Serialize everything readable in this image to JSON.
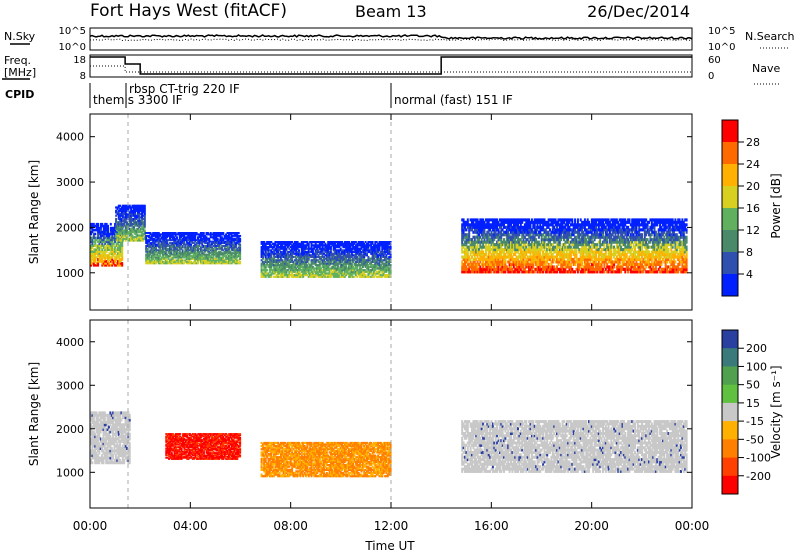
{
  "header": {
    "station": "Fort Hays West (fitACF)",
    "beam": "Beam 13",
    "date": "26/Dec/2014"
  },
  "status_panels": {
    "nsky_label": "N.Sky",
    "nsearch_label": "N.Search",
    "freq_label_line1": "Freq.",
    "freq_label_line2": "[MHz]",
    "nave_label": "Nave",
    "cpid_label": "CPID",
    "noise_ticks_left": [
      "10^5",
      "10^0"
    ],
    "noise_ticks_right": [
      "10^5",
      "10^0"
    ],
    "freq_ticks": [
      "18",
      "8"
    ],
    "nave_ticks": [
      "60",
      "0"
    ],
    "cpid_segments": [
      {
        "label": "themis 3300 IF",
        "start_hour": 0.0
      },
      {
        "label": "rbsp CT-trig 220 IF",
        "start_hour": 1.4
      },
      {
        "label": "normal (fast) 151 IF",
        "start_hour": 12.0
      }
    ]
  },
  "colorbars": {
    "power": {
      "label": "Power [dB]",
      "ticks": [
        "28",
        "24",
        "20",
        "16",
        "12",
        "8",
        "4"
      ],
      "colors": [
        "#ff0000",
        "#ff6a00",
        "#ffb000",
        "#d8d020",
        "#60b060",
        "#4a8a6a",
        "#3050b0",
        "#0020ff"
      ]
    },
    "velocity": {
      "label": "Velocity [m s⁻¹]",
      "ticks": [
        "200",
        "100",
        "50",
        "15",
        "-15",
        "-50",
        "-100",
        "-200"
      ],
      "colors": [
        "#2a40a0",
        "#3a7a7a",
        "#50a050",
        "#60c040",
        "#c8c8c8",
        "#ffb000",
        "#ff8000",
        "#ff4000",
        "#ff0000"
      ]
    }
  },
  "chart_data": [
    {
      "type": "heatmap",
      "title": "",
      "parameter": "Power",
      "ylabel": "Slant Range [km]",
      "xlabel": "",
      "yticks": [
        "1000",
        "2000",
        "3000",
        "4000"
      ],
      "xlim": [
        0,
        24
      ],
      "ylim": [
        180,
        4500
      ],
      "bands": [
        {
          "t0": 0.0,
          "t1": 1.3,
          "r0": 1150,
          "r1": 2100,
          "level": "mid"
        },
        {
          "t0": 1.0,
          "t1": 2.2,
          "r0": 1700,
          "r1": 2500,
          "level": "low"
        },
        {
          "t0": 2.2,
          "t1": 6.0,
          "r0": 1200,
          "r1": 1900,
          "level": "low"
        },
        {
          "t0": 6.8,
          "t1": 12.0,
          "r0": 900,
          "r1": 1700,
          "level": "low"
        },
        {
          "t0": 14.8,
          "t1": 23.8,
          "r0": 1000,
          "r1": 2200,
          "level": "high"
        }
      ]
    },
    {
      "type": "heatmap",
      "title": "",
      "parameter": "Velocity",
      "ylabel": "Slant Range [km]",
      "xlabel": "Time UT",
      "yticks": [
        "1000",
        "2000",
        "3000",
        "4000"
      ],
      "xticks": [
        "00:00",
        "04:00",
        "08:00",
        "12:00",
        "16:00",
        "20:00",
        "00:00"
      ],
      "xlim": [
        0,
        24
      ],
      "ylim": [
        180,
        4500
      ],
      "bands": [
        {
          "t0": 0.0,
          "t1": 1.6,
          "r0": 1200,
          "r1": 2400,
          "velocity": "ground"
        },
        {
          "t0": 3.0,
          "t1": 6.0,
          "r0": 1300,
          "r1": 1900,
          "velocity": "negative_strong"
        },
        {
          "t0": 6.8,
          "t1": 12.0,
          "r0": 900,
          "r1": 1700,
          "velocity": "negative_weak"
        },
        {
          "t0": 14.8,
          "t1": 23.8,
          "r0": 1000,
          "r1": 2200,
          "velocity": "ground"
        }
      ]
    }
  ]
}
